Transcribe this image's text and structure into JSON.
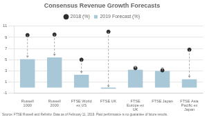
{
  "chart_data": {
    "type": "bar",
    "title": "Consensus Revenue Growth Forecasts",
    "categories": [
      "Russell\n1000",
      "Russell\n2000",
      "FTSE World\nex US",
      "FTSE UK",
      "FTSE\nEurope ex\nUK",
      "FTSE Japan",
      "FTSE Asia\nPacific ex\nJapan"
    ],
    "series": [
      {
        "name": "2019 Forecast (%)",
        "type": "bar",
        "color": "#a8c8d8",
        "values": [
          5.1,
          5.4,
          2.3,
          -0.2,
          3.2,
          3.0,
          1.5
        ]
      },
      {
        "name": "2018 (%)",
        "type": "scatter",
        "color": "#2d2d2d",
        "values": [
          9.4,
          9.5,
          5.0,
          10.0,
          3.5,
          3.1,
          6.8
        ]
      }
    ],
    "ylim": [
      -1,
      11
    ],
    "yticks": [
      -1,
      1,
      3,
      5,
      7,
      9,
      11
    ],
    "grid": true,
    "legend": "top",
    "annotations": [
      "Source: FTSE Russell and Refinitiv. Data as of February 11, 2019. Past performance is no guarantee of future results."
    ]
  }
}
